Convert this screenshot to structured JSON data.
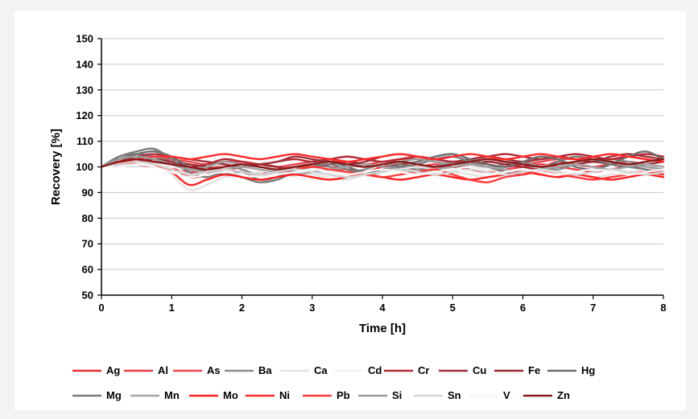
{
  "chart_data": {
    "type": "line",
    "xlabel": "Time [h]",
    "ylabel": "Recovery [%]",
    "xlim": [
      0,
      8
    ],
    "ylim": [
      50,
      150
    ],
    "x_ticks": [
      "0",
      "1",
      "2",
      "3",
      "4",
      "5",
      "6",
      "7",
      "8"
    ],
    "y_ticks": [
      "50",
      "60",
      "70",
      "80",
      "90",
      "100",
      "110",
      "120",
      "130",
      "140",
      "150"
    ],
    "grid": "horizontal",
    "legend_position": "bottom",
    "x": [
      0,
      0.25,
      0.5,
      0.75,
      1,
      1.25,
      1.5,
      1.75,
      2,
      2.25,
      2.5,
      2.75,
      3,
      3.25,
      3.5,
      3.75,
      4,
      4.25,
      4.5,
      4.75,
      5,
      5.25,
      5.5,
      5.75,
      6,
      6.25,
      6.5,
      6.75,
      7,
      7.25,
      7.5,
      7.75,
      8
    ],
    "series": [
      {
        "name": "Ag",
        "color": "#e8303a",
        "values": [
          100,
          101,
          103,
          102,
          100,
          96,
          97,
          99,
          98,
          97,
          99,
          100,
          101,
          100,
          99,
          98,
          100,
          101,
          100,
          99,
          101,
          102,
          101,
          100,
          101,
          100,
          102,
          101,
          100,
          101,
          102,
          101,
          100
        ]
      },
      {
        "name": "Al",
        "color": "#f03a48",
        "values": [
          100,
          102,
          104,
          103,
          101,
          98,
          99,
          101,
          100,
          99,
          98,
          99,
          100,
          101,
          102,
          101,
          100,
          99,
          100,
          101,
          100,
          99,
          98,
          99,
          100,
          101,
          100,
          99,
          98,
          99,
          100,
          99,
          98
        ]
      },
      {
        "name": "As",
        "color": "#e8474f",
        "values": [
          100,
          103,
          104,
          104,
          103,
          102,
          101,
          102,
          102,
          101,
          100,
          101,
          102,
          103,
          102,
          101,
          102,
          103,
          103,
          102,
          101,
          102,
          103,
          102,
          101,
          102,
          103,
          103,
          102,
          103,
          104,
          103,
          102
        ]
      },
      {
        "name": "Ba",
        "color": "#8c8c8c",
        "values": [
          100,
          104,
          105,
          104,
          102,
          99,
          100,
          101,
          99,
          97,
          98,
          100,
          101,
          100,
          98,
          99,
          101,
          100,
          99,
          100,
          102,
          101,
          100,
          101,
          102,
          100,
          99,
          101,
          102,
          103,
          102,
          101,
          100
        ]
      },
      {
        "name": "Ca",
        "color": "#e2e2e2",
        "values": [
          100,
          101,
          102,
          101,
          97,
          91,
          93,
          96,
          97,
          98,
          99,
          98,
          97,
          96,
          95,
          97,
          98,
          99,
          100,
          99,
          98,
          97,
          96,
          97,
          98,
          99,
          98,
          97,
          96,
          97,
          98,
          99,
          100
        ]
      },
      {
        "name": "Cd",
        "color": "#f2f2f2",
        "values": [
          100,
          102,
          103,
          102,
          100,
          99,
          100,
          101,
          100,
          99,
          97,
          96,
          95,
          96,
          97,
          98,
          99,
          98,
          97,
          98,
          99,
          100,
          99,
          98,
          99,
          100,
          101,
          100,
          99,
          100,
          101,
          100,
          99
        ]
      },
      {
        "name": "Cr",
        "color": "#b22a34",
        "values": [
          100,
          103,
          104,
          103,
          102,
          100,
          101,
          103,
          102,
          101,
          102,
          103,
          102,
          103,
          104,
          103,
          102,
          103,
          104,
          103,
          102,
          103,
          104,
          105,
          104,
          103,
          104,
          105,
          104,
          103,
          104,
          105,
          104
        ]
      },
      {
        "name": "Cu",
        "color": "#a0303a",
        "values": [
          100,
          102,
          104,
          105,
          104,
          103,
          102,
          101,
          100,
          101,
          102,
          104,
          103,
          102,
          101,
          102,
          104,
          105,
          104,
          103,
          102,
          103,
          104,
          103,
          102,
          103,
          104,
          103,
          102,
          104,
          105,
          104,
          103
        ]
      },
      {
        "name": "Fe",
        "color": "#9a2a30",
        "values": [
          100,
          101,
          102,
          103,
          102,
          101,
          100,
          99,
          100,
          101,
          100,
          99,
          100,
          101,
          102,
          101,
          100,
          99,
          98,
          99,
          100,
          101,
          102,
          101,
          100,
          99,
          100,
          101,
          102,
          101,
          100,
          101,
          102
        ]
      },
      {
        "name": "Hg",
        "color": "#6e6e6e",
        "values": [
          100,
          103,
          105,
          106,
          104,
          100,
          98,
          97,
          98,
          95,
          96,
          99,
          101,
          102,
          100,
          98,
          99,
          101,
          102,
          104,
          105,
          103,
          101,
          100,
          102,
          104,
          103,
          100,
          99,
          101,
          104,
          106,
          103
        ]
      },
      {
        "name": "Mg",
        "color": "#7a7a7a",
        "values": [
          100,
          104,
          106,
          107,
          103,
          98,
          96,
          98,
          96,
          94,
          95,
          98,
          100,
          101,
          99,
          97,
          98,
          100,
          101,
          103,
          104,
          102,
          100,
          98,
          97,
          99,
          102,
          104,
          103,
          101,
          100,
          99,
          97
        ]
      },
      {
        "name": "Mn",
        "color": "#a5a5a5",
        "values": [
          100,
          103,
          104,
          103,
          101,
          99,
          98,
          99,
          100,
          99,
          98,
          97,
          98,
          99,
          100,
          101,
          100,
          99,
          98,
          99,
          100,
          101,
          100,
          99,
          98,
          99,
          100,
          101,
          100,
          99,
          100,
          101,
          100
        ]
      },
      {
        "name": "Mo",
        "color": "#ff2020",
        "values": [
          100,
          101,
          102,
          101,
          98,
          93,
          95,
          97,
          96,
          95,
          96,
          97,
          96,
          95,
          96,
          97,
          96,
          95,
          96,
          97,
          96,
          95,
          96,
          97,
          98,
          97,
          96,
          97,
          96,
          95,
          96,
          97,
          96
        ]
      },
      {
        "name": "Ni",
        "color": "#ff2a2a",
        "values": [
          100,
          102,
          103,
          104,
          104,
          103,
          104,
          105,
          104,
          103,
          104,
          105,
          104,
          103,
          102,
          103,
          104,
          105,
          104,
          103,
          104,
          105,
          104,
          103,
          104,
          105,
          104,
          103,
          104,
          105,
          104,
          103,
          102
        ]
      },
      {
        "name": "Pb",
        "color": "#ff3b3b",
        "values": [
          100,
          102,
          101,
          100,
          99,
          97,
          98,
          99,
          98,
          97,
          98,
          99,
          100,
          99,
          98,
          97,
          96,
          97,
          98,
          99,
          97,
          95,
          94,
          96,
          97,
          98,
          97,
          96,
          95,
          96,
          97,
          98,
          97
        ]
      },
      {
        "name": "Si",
        "color": "#9a9a9a",
        "values": [
          100,
          103,
          104,
          103,
          101,
          99,
          100,
          102,
          101,
          100,
          99,
          100,
          101,
          102,
          101,
          100,
          101,
          102,
          103,
          102,
          101,
          102,
          103,
          102,
          101,
          100,
          101,
          102,
          103,
          102,
          101,
          100,
          99
        ]
      },
      {
        "name": "Sn",
        "color": "#d4d4d4",
        "values": [
          100,
          101,
          102,
          101,
          99,
          97,
          98,
          99,
          98,
          97,
          98,
          99,
          98,
          97,
          96,
          97,
          98,
          99,
          98,
          97,
          98,
          99,
          98,
          97,
          98,
          99,
          98,
          97,
          98,
          99,
          98,
          97,
          98
        ]
      },
      {
        "name": "V",
        "color": "#f6f6f6",
        "values": [
          100,
          100,
          101,
          100,
          98,
          96,
          97,
          98,
          97,
          96,
          97,
          98,
          99,
          98,
          97,
          98,
          99,
          98,
          97,
          98,
          99,
          98,
          97,
          98,
          99,
          98,
          97,
          98,
          99,
          98,
          97,
          98,
          99
        ]
      },
      {
        "name": "Zn",
        "color": "#8a1a1a",
        "values": [
          100,
          102,
          103,
          102,
          101,
          100,
          99,
          100,
          101,
          100,
          99,
          100,
          101,
          102,
          101,
          100,
          101,
          102,
          101,
          100,
          101,
          102,
          103,
          102,
          101,
          100,
          101,
          102,
          103,
          102,
          101,
          102,
          103
        ]
      }
    ]
  }
}
